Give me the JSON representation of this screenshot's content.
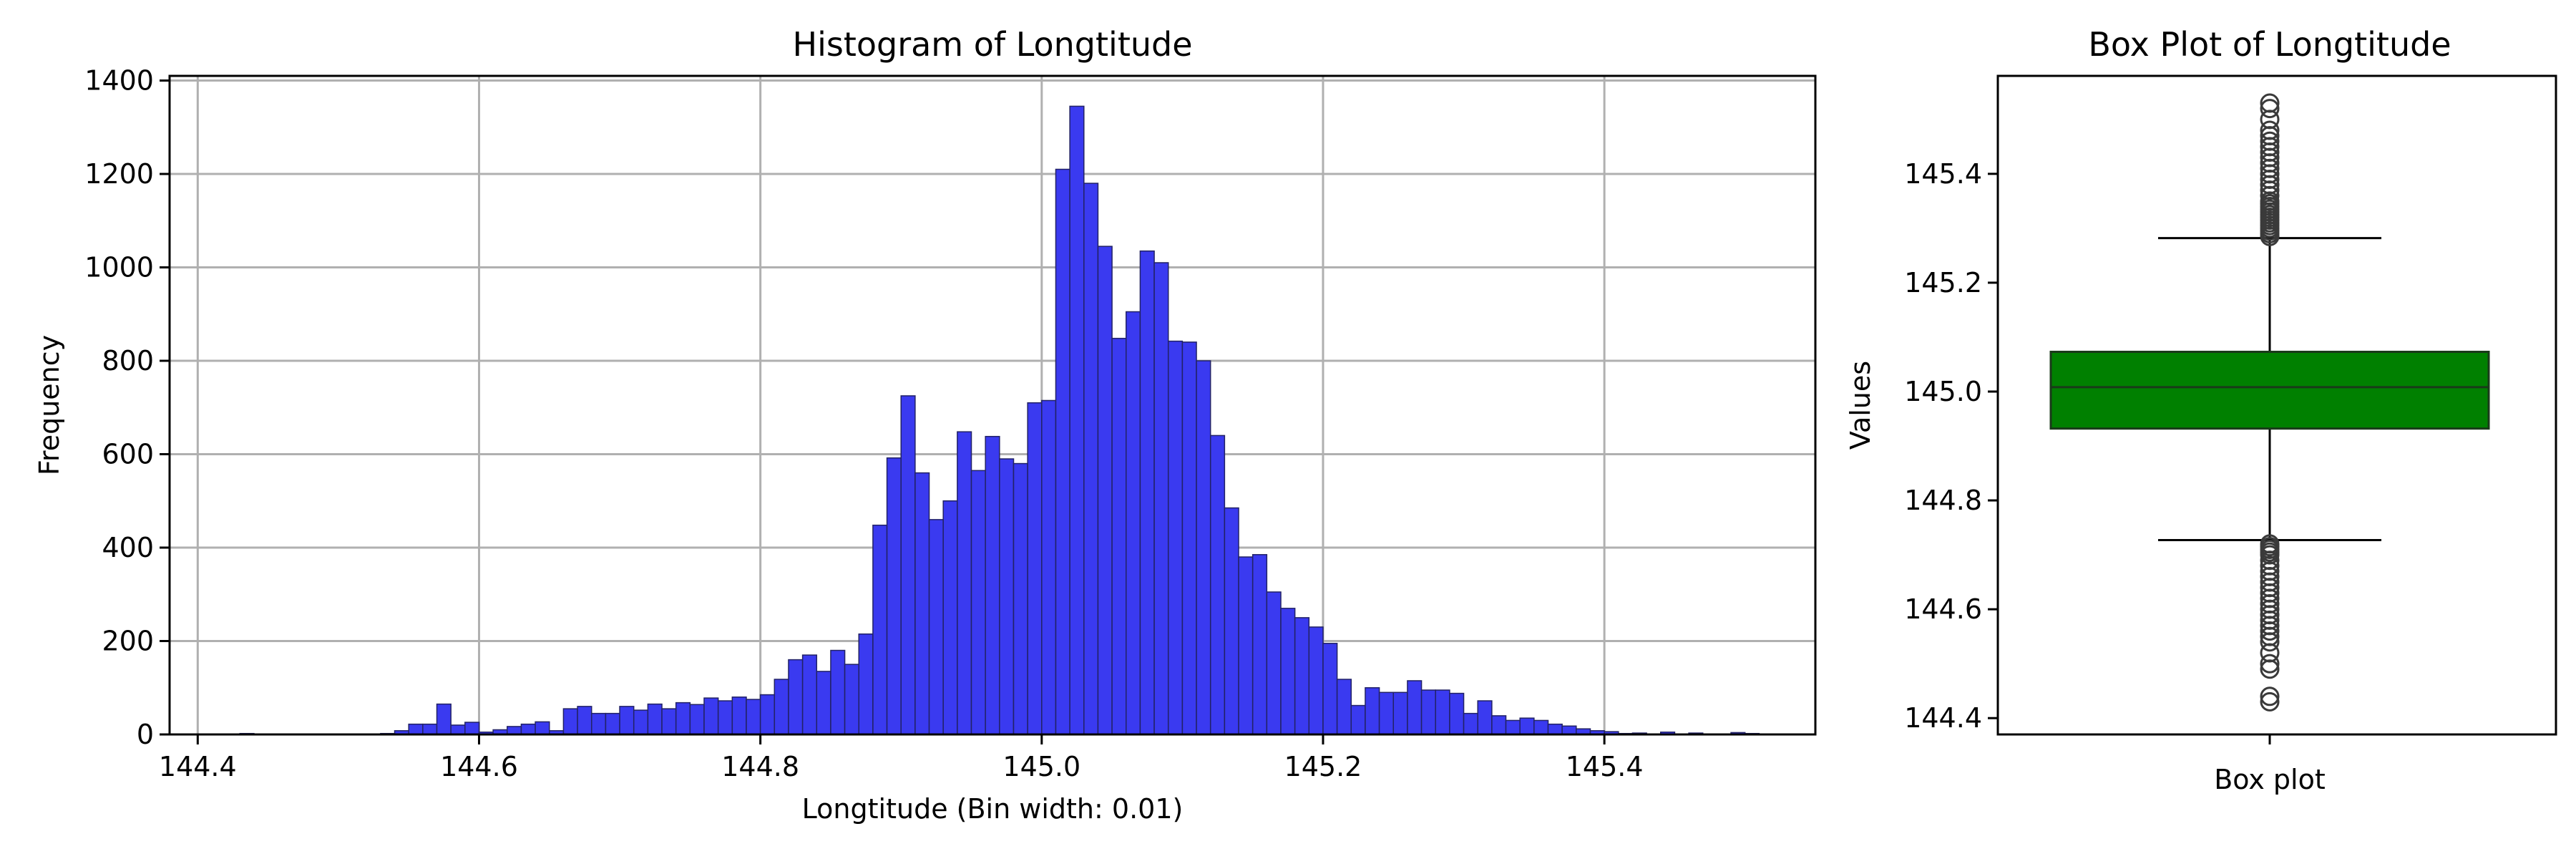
{
  "chart_data": [
    {
      "type": "bar",
      "title": "Histogram of Longtitude",
      "xlabel": "Longtitude (Bin width: 0.01)",
      "ylabel": "Frequency",
      "xlim": [
        144.38,
        145.55
      ],
      "ylim": [
        0,
        1410
      ],
      "xticks": [
        144.4,
        144.6,
        144.8,
        145.0,
        145.2,
        145.4
      ],
      "xtick_labels": [
        "144.4",
        "144.6",
        "144.8",
        "145.0",
        "145.2",
        "145.4"
      ],
      "yticks": [
        0,
        200,
        400,
        600,
        800,
        1000,
        1200,
        1400
      ],
      "ytick_labels": [
        "0",
        "200",
        "400",
        "600",
        "800",
        "1000",
        "1200",
        "1400"
      ],
      "grid": true,
      "bar_color": "#3a3af0",
      "bin_width": 0.01,
      "bin_starts": [
        144.42,
        144.43,
        144.44,
        144.45,
        144.46,
        144.47,
        144.48,
        144.49,
        144.5,
        144.51,
        144.52,
        144.53,
        144.54,
        144.55,
        144.56,
        144.57,
        144.58,
        144.59,
        144.6,
        144.61,
        144.62,
        144.63,
        144.64,
        144.65,
        144.66,
        144.67,
        144.68,
        144.69,
        144.7,
        144.71,
        144.72,
        144.73,
        144.74,
        144.75,
        144.76,
        144.77,
        144.78,
        144.79,
        144.8,
        144.81,
        144.82,
        144.83,
        144.84,
        144.85,
        144.86,
        144.87,
        144.88,
        144.89,
        144.9,
        144.91,
        144.92,
        144.93,
        144.94,
        144.95,
        144.96,
        144.97,
        144.98,
        144.99,
        145.0,
        145.01,
        145.02,
        145.03,
        145.04,
        145.05,
        145.06,
        145.07,
        145.08,
        145.09,
        145.1,
        145.11,
        145.12,
        145.13,
        145.14,
        145.15,
        145.16,
        145.17,
        145.18,
        145.19,
        145.2,
        145.21,
        145.22,
        145.23,
        145.24,
        145.25,
        145.26,
        145.27,
        145.28,
        145.29,
        145.3,
        145.31,
        145.32,
        145.33,
        145.34,
        145.35,
        145.36,
        145.37,
        145.38,
        145.39,
        145.4,
        145.41,
        145.42,
        145.43,
        145.44,
        145.45,
        145.46,
        145.47,
        145.48,
        145.49,
        145.5,
        145.51,
        145.52
      ],
      "values": [
        1,
        2,
        0,
        1,
        1,
        0,
        0,
        1,
        1,
        1,
        0,
        2,
        8,
        22,
        22,
        65,
        20,
        26,
        5,
        10,
        17,
        22,
        27,
        8,
        55,
        60,
        45,
        45,
        60,
        52,
        65,
        55,
        68,
        64,
        78,
        72,
        80,
        75,
        85,
        118,
        160,
        170,
        135,
        180,
        150,
        215,
        448,
        592,
        725,
        560,
        460,
        500,
        648,
        565,
        638,
        590,
        580,
        710,
        715,
        1210,
        1345,
        1180,
        1045,
        848,
        905,
        1035,
        1010,
        842,
        840,
        800,
        640,
        485,
        380,
        385,
        305,
        270,
        250,
        230,
        195,
        118,
        62,
        100,
        90,
        90,
        115,
        95,
        95,
        88,
        45,
        72,
        40,
        30,
        35,
        30,
        22,
        18,
        12,
        8,
        6,
        2,
        3,
        1,
        5,
        1,
        3,
        1,
        0,
        4,
        2,
        1,
        1,
        0,
        1
      ]
    },
    {
      "type": "box",
      "title": "Box Plot of Longtitude",
      "xlabel": "Box plot",
      "ylabel": "Values",
      "ylim": [
        144.37,
        145.58
      ],
      "yticks": [
        144.4,
        144.6,
        144.8,
        145.0,
        145.2,
        145.4
      ],
      "ytick_labels": [
        "144.4",
        "144.6",
        "144.8",
        "145.0",
        "145.2",
        "145.4"
      ],
      "box_color": "#008000",
      "q1": 144.932,
      "median": 145.008,
      "q3": 145.073,
      "whisker_low": 144.727,
      "whisker_high": 145.282,
      "outliers_high": [
        145.285,
        145.29,
        145.295,
        145.3,
        145.305,
        145.31,
        145.315,
        145.32,
        145.325,
        145.33,
        145.335,
        145.34,
        145.345,
        145.35,
        145.36,
        145.37,
        145.38,
        145.39,
        145.4,
        145.41,
        145.42,
        145.43,
        145.44,
        145.45,
        145.46,
        145.47,
        145.48,
        145.5,
        145.52,
        145.53
      ],
      "outliers_low": [
        144.72,
        144.715,
        144.71,
        144.705,
        144.7,
        144.69,
        144.68,
        144.67,
        144.66,
        144.65,
        144.64,
        144.63,
        144.62,
        144.61,
        144.6,
        144.59,
        144.58,
        144.57,
        144.56,
        144.55,
        144.54,
        144.52,
        144.5,
        144.49,
        144.44,
        144.43
      ]
    }
  ]
}
